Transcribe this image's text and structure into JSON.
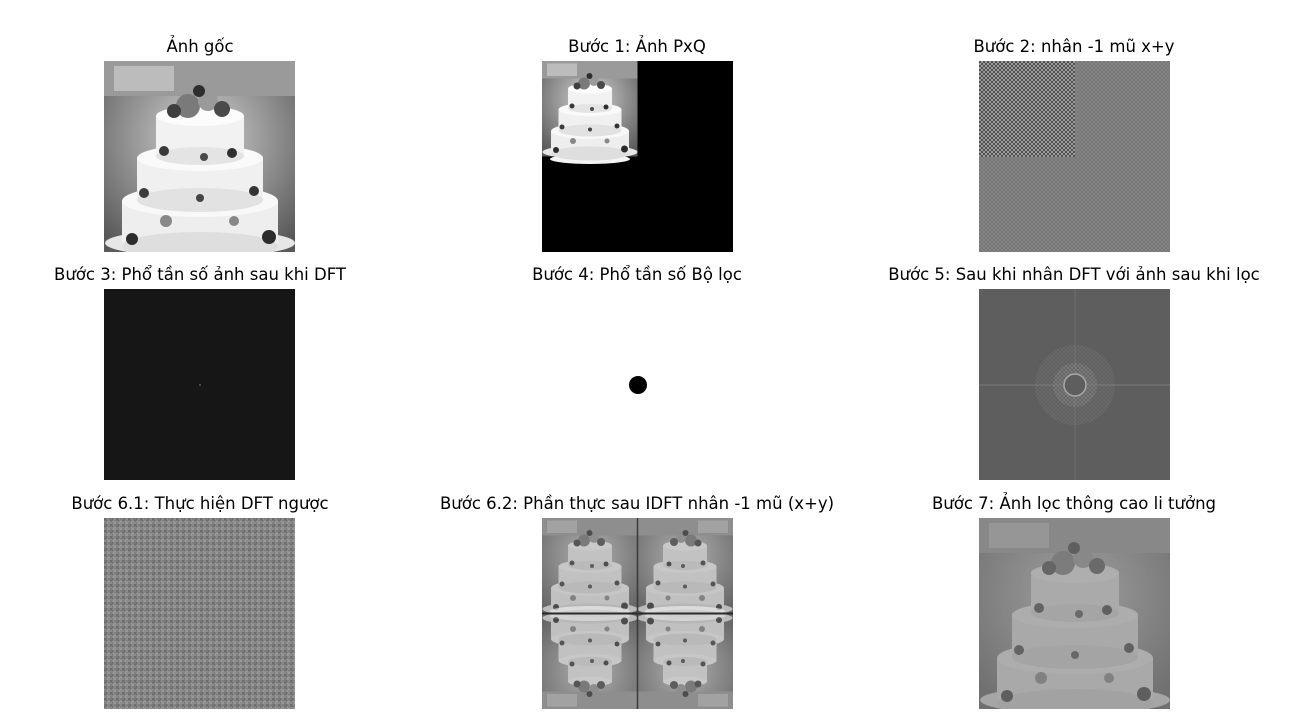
{
  "figure": {
    "panels": [
      {
        "id": "p1",
        "title": "Ảnh gốc",
        "icon": "cake-photo"
      },
      {
        "id": "p2",
        "title": "Bước 1: Ảnh PxQ",
        "icon": "padded-cake-photo"
      },
      {
        "id": "p3",
        "title": "Bước 2: nhân -1 mũ x+y",
        "icon": "checkerboard-image"
      },
      {
        "id": "p4",
        "title": "Bước 3: Phổ tần số ảnh sau khi DFT",
        "icon": "dark-spectrum-image"
      },
      {
        "id": "p5",
        "title": "Bước 4: Phổ tần số Bộ lọc",
        "icon": "filter-disk-image"
      },
      {
        "id": "p6",
        "title": "Bước 5: Sau khi nhân DFT với ảnh sau khi lọc",
        "icon": "filtered-spectrum-image"
      },
      {
        "id": "p7",
        "title": "Bước 6.1: Thực hiện DFT ngược",
        "icon": "noise-pattern-image"
      },
      {
        "id": "p8",
        "title": "Bước 6.2: Phần thực sau IDFT nhân -1 mũ (x+y)",
        "icon": "mirrored-cake-image"
      },
      {
        "id": "p9",
        "title": "Bước 7: Ảnh lọc thông cao li tưởng",
        "icon": "highpass-cake-image"
      }
    ]
  }
}
